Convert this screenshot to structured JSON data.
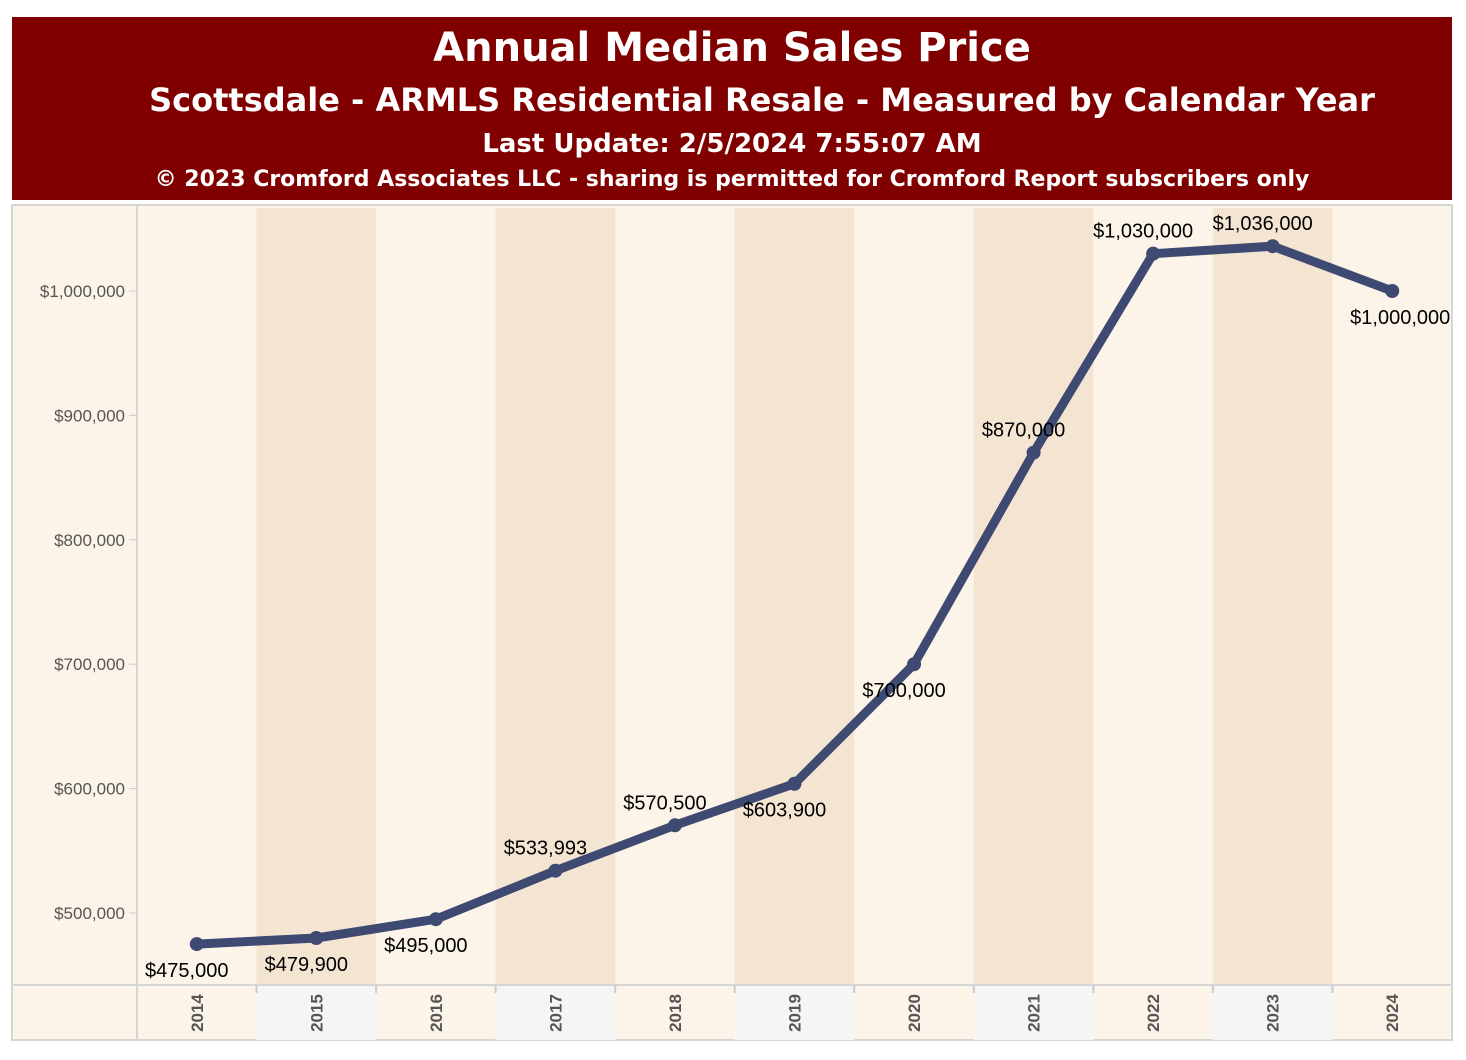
{
  "header": {
    "title": "Annual Median Sales Price",
    "subtitle": "Scottsdale - ARMLS Residential Resale - Measured by Calendar Year",
    "last_update": "Last Update: 2/5/2024 7:55:07 AM",
    "copyright": "© 2023 Cromford Associates LLC - sharing is permitted for Cromford Report subscribers only"
  },
  "colors": {
    "header_bg": "#800000",
    "line": "#3f4a72",
    "band_light": "#fcf4e8",
    "band_dark": "#f4e4d2",
    "axis_band_alt": "#f5f5f5"
  },
  "chart_data": {
    "type": "line",
    "title": "Annual Median Sales Price",
    "x": [
      "2014",
      "2015",
      "2016",
      "2017",
      "2018",
      "2019",
      "2020",
      "2021",
      "2022",
      "2023",
      "2024"
    ],
    "series": [
      {
        "values": [
          475000,
          479900,
          495000,
          533993,
          570500,
          603900,
          700000,
          870000,
          1030000,
          1036000,
          1000000
        ]
      }
    ],
    "data_labels": [
      "$475,000",
      "$479,900",
      "$495,000",
      "$533,993",
      "$570,500",
      "$603,900",
      "$700,000",
      "$870,000",
      "$1,030,000",
      "$1,036,000",
      "$1,000,000"
    ],
    "label_position": [
      "below",
      "below",
      "below",
      "above",
      "above",
      "below",
      "below",
      "above",
      "above",
      "above",
      "below"
    ],
    "y_ticks": [
      500000,
      600000,
      700000,
      800000,
      900000,
      1000000
    ],
    "y_tick_labels": [
      "$500,000",
      "$600,000",
      "$700,000",
      "$800,000",
      "$900,000",
      "$1,000,000"
    ],
    "grid": false,
    "legend": "none"
  }
}
